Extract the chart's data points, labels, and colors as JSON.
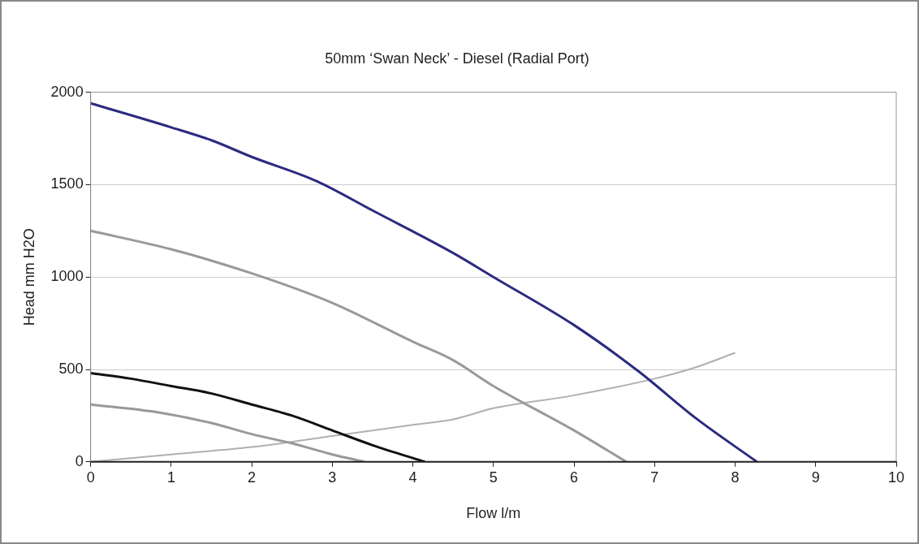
{
  "chart_data": {
    "type": "line",
    "title": "50mm ‘Swan Neck’ - Diesel (Radial Port)",
    "xlabel": "Flow l/m",
    "ylabel": "Head mm H2O",
    "xlim": [
      0,
      10
    ],
    "xticks": [
      0,
      1,
      2,
      3,
      4,
      5,
      6,
      7,
      8,
      9,
      10
    ],
    "ylim": [
      0,
      2000
    ],
    "yticks": [
      0,
      500,
      1000,
      1500,
      2000
    ],
    "grid": "y",
    "legend": false,
    "marker": "none",
    "series": [
      {
        "color": "#2b2b80",
        "x": [
          0,
          1,
          1.5,
          2,
          2.8,
          3.5,
          4.5,
          5,
          6,
          6.8,
          7.5,
          8.27
        ],
        "values": [
          1940,
          1810,
          1740,
          1650,
          1520,
          1360,
          1130,
          1000,
          740,
          490,
          240,
          0
        ]
      },
      {
        "color": "#999999",
        "x": [
          0,
          1,
          2,
          3,
          4,
          4.5,
          5,
          6,
          6.65
        ],
        "values": [
          1250,
          1150,
          1020,
          860,
          650,
          550,
          410,
          170,
          0
        ]
      },
      {
        "color": "#111111",
        "x": [
          0,
          0.5,
          1,
          1.5,
          2,
          2.5,
          3,
          3.5,
          4.15
        ],
        "values": [
          480,
          450,
          410,
          370,
          310,
          250,
          170,
          90,
          0
        ]
      },
      {
        "color": "#999999",
        "x": [
          0,
          0.8,
          1.5,
          2,
          2.5,
          3,
          3.4
        ],
        "values": [
          310,
          270,
          210,
          150,
          100,
          40,
          0
        ]
      },
      {
        "color": "#b0b0b0",
        "x": [
          0,
          1,
          2,
          3,
          4,
          4.5,
          5,
          6,
          7,
          7.5,
          8
        ],
        "values": [
          0,
          40,
          80,
          140,
          200,
          230,
          290,
          360,
          450,
          510,
          590
        ]
      }
    ]
  }
}
